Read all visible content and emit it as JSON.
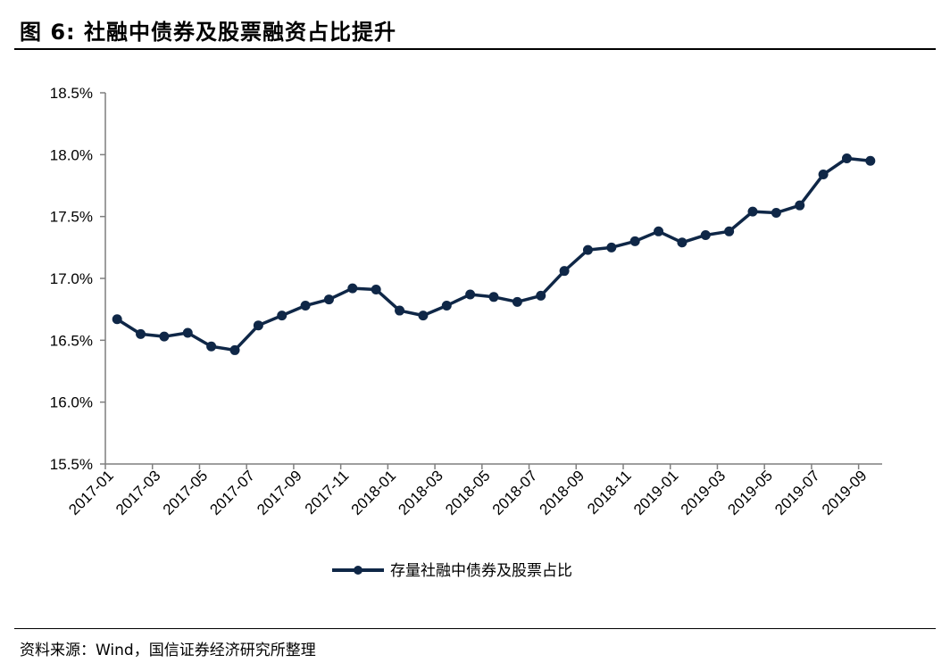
{
  "header": {
    "title": "图 6:  社融中债券及股票融资占比提升"
  },
  "footer": {
    "source": "资料来源：Wind，国信证券经济研究所整理"
  },
  "colors": {
    "series": "#0f2747",
    "axis": "#7f7f7f",
    "rule": "#000000"
  },
  "chart_data": {
    "type": "line",
    "title": "",
    "xlabel": "",
    "ylabel": "",
    "ylim": [
      15.5,
      18.5
    ],
    "y_unit": "%",
    "y_ticks": [
      "15.5%",
      "16.0%",
      "16.5%",
      "17.0%",
      "17.5%",
      "18.0%",
      "18.5%"
    ],
    "y_tick_values": [
      15.5,
      16.0,
      16.5,
      17.0,
      17.5,
      18.0,
      18.5
    ],
    "x_tick_labels": [
      "2017-01",
      "2017-03",
      "2017-05",
      "2017-07",
      "2017-09",
      "2017-11",
      "2018-01",
      "2018-03",
      "2018-05",
      "2018-07",
      "2018-09",
      "2018-11",
      "2019-01",
      "2019-03",
      "2019-05",
      "2019-07",
      "2019-09"
    ],
    "x": [
      "2017-01",
      "2017-02",
      "2017-03",
      "2017-04",
      "2017-05",
      "2017-06",
      "2017-07",
      "2017-08",
      "2017-09",
      "2017-10",
      "2017-11",
      "2017-12",
      "2018-01",
      "2018-02",
      "2018-03",
      "2018-04",
      "2018-05",
      "2018-06",
      "2018-07",
      "2018-08",
      "2018-09",
      "2018-10",
      "2018-11",
      "2018-12",
      "2019-01",
      "2019-02",
      "2019-03",
      "2019-04",
      "2019-05",
      "2019-06",
      "2019-07",
      "2019-08",
      "2019-09"
    ],
    "series": [
      {
        "name": "存量社融中债券及股票占比",
        "values": [
          16.67,
          16.55,
          16.53,
          16.56,
          16.45,
          16.42,
          16.62,
          16.7,
          16.78,
          16.83,
          16.92,
          16.91,
          16.74,
          16.7,
          16.78,
          16.87,
          16.85,
          16.81,
          16.86,
          17.06,
          17.23,
          17.25,
          17.3,
          17.38,
          17.29,
          17.35,
          17.38,
          17.54,
          17.53,
          17.59,
          17.84,
          17.97,
          17.95
        ]
      }
    ],
    "grid": false,
    "legend_position": "bottom"
  }
}
